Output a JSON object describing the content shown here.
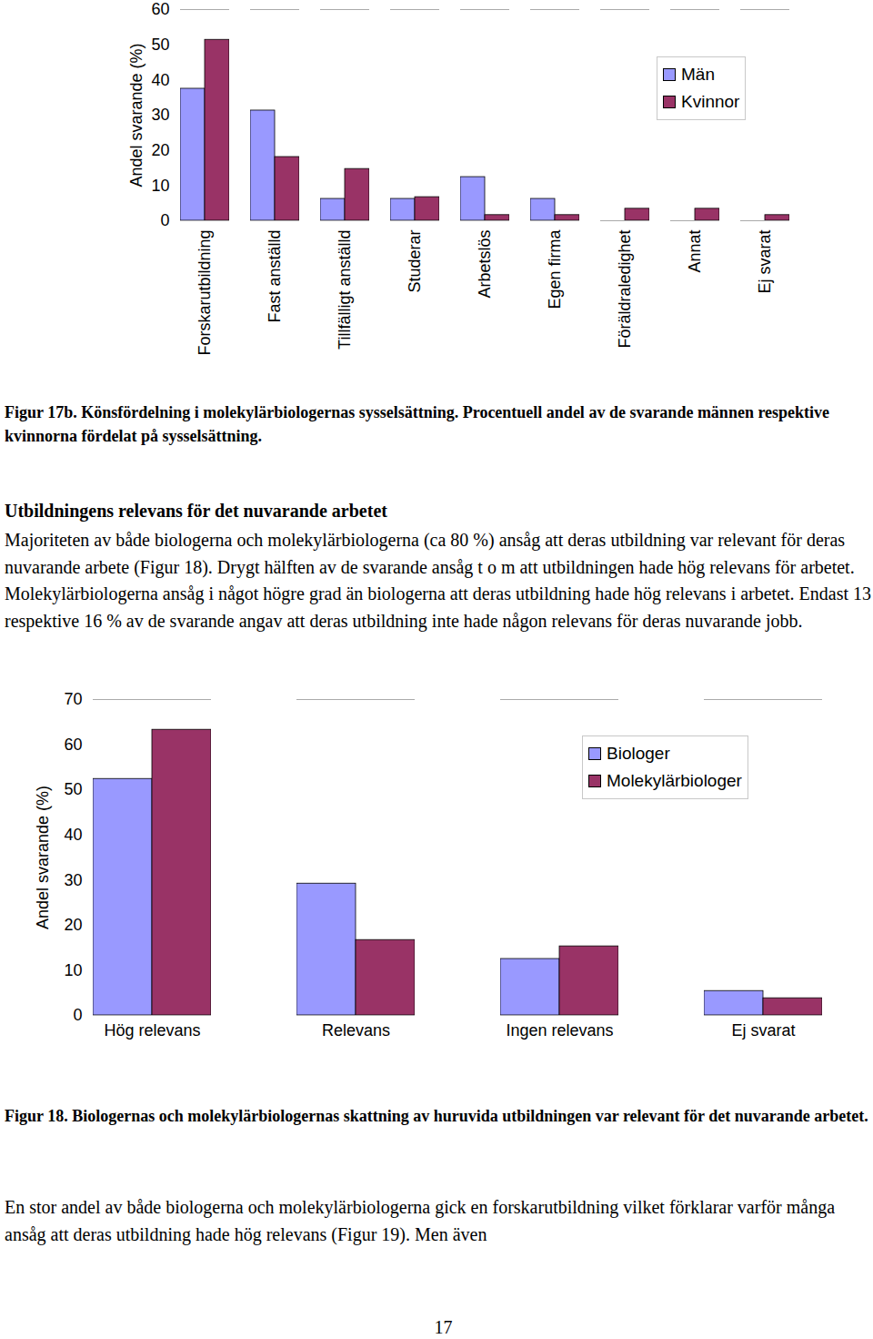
{
  "document": {
    "heading": "Utbildningens relevans för det nuvarande arbetet",
    "paragraph": "Majoriteten av både biologerna och molekylärbiologerna (ca 80 %) ansåg att deras utbildning var relevant för deras nuvarande arbete (Figur 18). Drygt hälften av de svarande ansåg t o m att utbildningen hade hög relevans för arbetet. Molekylärbiologerna ansåg i något högre grad än biologerna att deras utbildning hade hög relevans i arbetet. Endast 13 respektive 16 % av de svarande angav att deras utbildning inte hade någon relevans för deras nuvarande jobb.",
    "closing_paragraph": "En stor andel av både biologerna och molekylärbiologerna gick en forskarutbildning vilket förklarar varför många ansåg att deras utbildning hade hög relevans (Figur 19). Men även",
    "page_number": "17"
  },
  "chart_data": [
    {
      "type": "bar",
      "title": "Figur 17b. Könsfördelning i molekylärbiologernas sysselsättning. Procentuell andel av de svarande männen respektive kvinnorna fördelat på sysselsättning.",
      "y_label": "Andel svarande (%)",
      "categories": [
        "Forskarutbildning",
        "Fast anställd",
        "Tillfälligt anställd",
        "Studerar",
        "Arbetslös",
        "Egen firma",
        "Föräldraledighet",
        "Annat",
        "Ej svarat"
      ],
      "series": [
        {
          "name": "Män",
          "color": "#9999ff",
          "values": [
            37.5,
            31.3,
            6.2,
            6.2,
            12.4,
            6.2,
            0,
            0,
            0
          ]
        },
        {
          "name": "Kvinnor",
          "color": "#993366",
          "values": [
            51.4,
            18.1,
            14.7,
            6.7,
            1.6,
            1.6,
            3.4,
            3.4,
            1.6
          ]
        }
      ],
      "ylim": [
        0,
        60
      ],
      "yticks": [
        0,
        10,
        20,
        30,
        40,
        50,
        60
      ],
      "grid": false,
      "legend": "top-right"
    },
    {
      "type": "bar",
      "title": "Figur 18. Biologernas och molekylärbiologernas skattning av huruvida utbildningen var relevant för det nuvarande arbetet.",
      "y_label": "Andel svarande (%)",
      "categories": [
        "Hög relevans",
        "Relevans",
        "Ingen relevans",
        "Ej svarat"
      ],
      "series": [
        {
          "name": "Biologer",
          "color": "#9999ff",
          "values": [
            52.4,
            29.2,
            12.5,
            5.4
          ]
        },
        {
          "name": "Molekylärbiologer",
          "color": "#993366",
          "values": [
            63.3,
            16.7,
            15.3,
            3.8
          ]
        }
      ],
      "ylim": [
        0,
        70
      ],
      "yticks": [
        0,
        10,
        20,
        30,
        40,
        50,
        60,
        70
      ],
      "grid": false,
      "legend": "top-right"
    }
  ]
}
